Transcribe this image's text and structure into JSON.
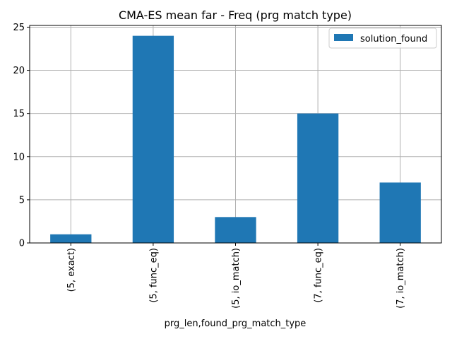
{
  "chart_data": {
    "type": "bar",
    "title": "CMA-ES mean far - Freq (prg match type)",
    "xlabel": "prg_len,found_prg_match_type",
    "ylabel": "",
    "categories": [
      "(5, exact)",
      "(5, func_eq)",
      "(5, io_match)",
      "(7, func_eq)",
      "(7, io_match)"
    ],
    "series": [
      {
        "name": "solution_found",
        "values": [
          1,
          24,
          3,
          15,
          7
        ],
        "color": "#1f77b4"
      }
    ],
    "ylim": [
      0,
      25.2
    ],
    "yticks": [
      0,
      5,
      10,
      15,
      20,
      25
    ],
    "grid": true,
    "legend_position": "upper right"
  }
}
